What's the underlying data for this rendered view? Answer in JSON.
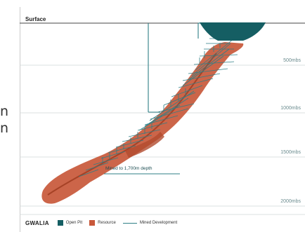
{
  "side_text": [
    "n",
    "n"
  ],
  "diagram": {
    "surface_label": "Surface",
    "depth_labels": [
      "500mbs",
      "1000mbs",
      "1500mbs",
      "2000mbs"
    ],
    "annotation": "Mined to 1,700m depth"
  },
  "legend": {
    "title": "GWALIA",
    "items": [
      {
        "label": "Open Pit",
        "color": "#155e63"
      },
      {
        "label": "Resource",
        "color": "#c8583a"
      },
      {
        "label": "Mined Development",
        "color": "#2f7f86"
      }
    ]
  }
}
